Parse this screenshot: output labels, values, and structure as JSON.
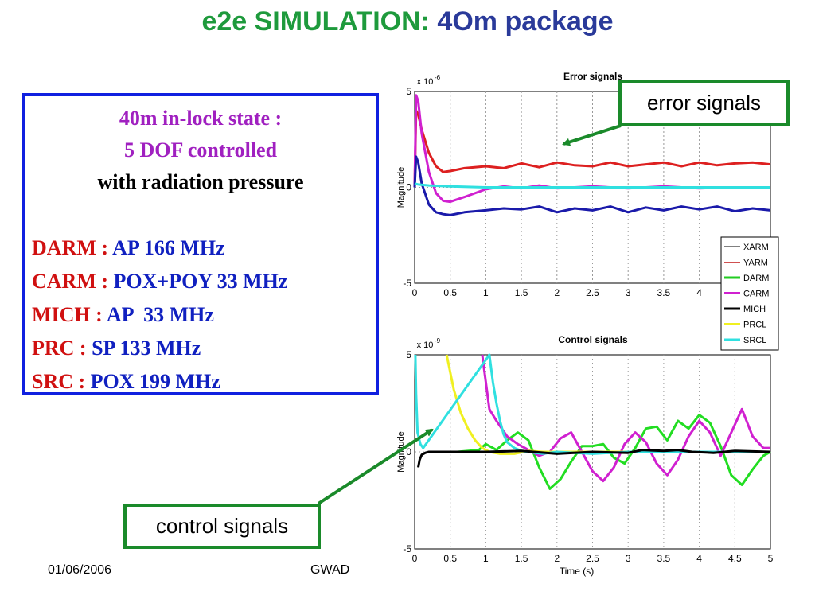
{
  "slide": {
    "title_part1": "e2e SIMULATION:",
    "title_part2": "4Om package",
    "footer_date": "01/06/2006",
    "footer_code": "GWAD"
  },
  "infobox": {
    "line1": "40m in-lock state :",
    "line2": "5 DOF controlled",
    "line3": "with radiation pressure",
    "rows": [
      {
        "key": "DARM :",
        "value": "AP 166 MHz"
      },
      {
        "key": "CARM :",
        "value": "POX+POY 33 MHz"
      },
      {
        "key": "MICH :",
        "value": "AP  33 MHz"
      },
      {
        "key": "PRC :",
        "value": "SP 133 MHz"
      },
      {
        "key": "SRC :",
        "value": "POX 199 MHz"
      }
    ]
  },
  "callouts": {
    "error": "error signals",
    "control": "control signals"
  },
  "chart_data": [
    {
      "type": "line",
      "title": "Error signals",
      "xlabel": "",
      "ylabel": "Magnitude",
      "scale_label": "x 10",
      "scale_exp": "-6",
      "xlim": [
        0,
        5
      ],
      "ylim": [
        -5,
        5
      ],
      "xticks": [
        "0",
        "0.5",
        "1",
        "1.5",
        "2",
        "2.5",
        "3",
        "3.5",
        "4"
      ],
      "yticks": [
        "5",
        "0",
        "-5"
      ],
      "grid": true,
      "legend": {
        "placement": "bottom-right",
        "entries": [
          {
            "name": "XARM",
            "color": "#000000",
            "width": 1
          },
          {
            "name": "YARM",
            "color": "#d05050",
            "width": 1
          },
          {
            "name": "DARM",
            "color": "#22cc22",
            "width": 3
          },
          {
            "name": "CARM",
            "color": "#d020d0",
            "width": 3
          },
          {
            "name": "MICH",
            "color": "#000000",
            "width": 3
          },
          {
            "name": "PRCL",
            "color": "#f0f020",
            "width": 3
          },
          {
            "name": "SRCL",
            "color": "#30e0e0",
            "width": 3
          }
        ]
      },
      "series": [
        {
          "color": "#dd2020",
          "x": [
            0,
            0.02,
            0.05,
            0.1,
            0.2,
            0.3,
            0.4,
            0.5,
            0.7,
            1.0,
            1.25,
            1.5,
            1.75,
            2.0,
            2.25,
            2.5,
            2.75,
            3.0,
            3.25,
            3.5,
            3.75,
            4.0,
            4.25,
            4.5,
            4.75,
            5.0
          ],
          "y": [
            0.0,
            4.0,
            3.8,
            3.0,
            1.8,
            1.1,
            0.8,
            0.85,
            1.0,
            1.1,
            1.0,
            1.25,
            1.05,
            1.3,
            1.15,
            1.1,
            1.3,
            1.1,
            1.2,
            1.3,
            1.1,
            1.3,
            1.15,
            1.25,
            1.3,
            1.2
          ]
        },
        {
          "color": "#d020d0",
          "x": [
            0,
            0.02,
            0.05,
            0.1,
            0.2,
            0.3,
            0.4,
            0.5,
            0.7,
            1.0,
            1.25,
            1.5,
            1.75,
            2.0,
            2.5,
            3.0,
            3.5,
            4.0,
            4.5,
            5.0
          ],
          "y": [
            0.0,
            4.8,
            4.5,
            2.8,
            0.8,
            -0.3,
            -0.7,
            -0.75,
            -0.5,
            -0.1,
            0.05,
            -0.05,
            0.1,
            -0.05,
            0.05,
            -0.05,
            0.05,
            -0.05,
            0.0,
            0.0
          ]
        },
        {
          "color": "#1a1aaa",
          "x": [
            0,
            0.02,
            0.05,
            0.1,
            0.2,
            0.3,
            0.4,
            0.5,
            0.7,
            1.0,
            1.25,
            1.5,
            1.75,
            2.0,
            2.25,
            2.5,
            2.75,
            3.0,
            3.25,
            3.5,
            3.75,
            4.0,
            4.25,
            4.5,
            4.75,
            5.0
          ],
          "y": [
            0.0,
            1.6,
            1.3,
            0.2,
            -0.9,
            -1.3,
            -1.4,
            -1.45,
            -1.3,
            -1.2,
            -1.1,
            -1.15,
            -1.0,
            -1.3,
            -1.1,
            -1.2,
            -1.0,
            -1.3,
            -1.05,
            -1.2,
            -1.0,
            -1.15,
            -1.0,
            -1.25,
            -1.1,
            -1.2
          ]
        },
        {
          "color": "#30e0e0",
          "x": [
            0,
            0.05,
            0.2,
            0.5,
            1.0,
            1.5,
            2.0,
            3.0,
            4.0,
            5.0
          ],
          "y": [
            0.2,
            0.15,
            0.1,
            0.05,
            0.0,
            0.0,
            0.0,
            0.0,
            0.0,
            0.0
          ]
        }
      ]
    },
    {
      "type": "line",
      "title": "Control signals",
      "xlabel": "Time (s)",
      "ylabel": "Magnitude",
      "scale_label": "x 10",
      "scale_exp": "-9",
      "xlim": [
        0,
        5
      ],
      "ylim": [
        -5,
        5
      ],
      "xticks": [
        "0",
        "0.5",
        "1",
        "1.5",
        "2",
        "2.5",
        "3",
        "3.5",
        "4",
        "4.5",
        "5"
      ],
      "yticks": [
        "5",
        "0",
        "-5"
      ],
      "grid": true,
      "series": [
        {
          "color": "#22dd22",
          "x": [
            0.3,
            0.6,
            0.9,
            1.0,
            1.15,
            1.3,
            1.45,
            1.6,
            1.75,
            1.9,
            2.05,
            2.2,
            2.35,
            2.5,
            2.65,
            2.8,
            2.95,
            3.1,
            3.25,
            3.4,
            3.55,
            3.7,
            3.85,
            4.0,
            4.15,
            4.3,
            4.45,
            4.6,
            4.75,
            4.9,
            5.0
          ],
          "y": [
            0.0,
            0.0,
            0.1,
            0.4,
            0.1,
            0.6,
            1.0,
            0.6,
            -0.8,
            -1.9,
            -1.4,
            -0.5,
            0.3,
            0.3,
            0.4,
            -0.3,
            -0.6,
            0.2,
            1.2,
            1.3,
            0.6,
            1.6,
            1.2,
            1.9,
            1.5,
            0.3,
            -1.2,
            -1.7,
            -0.9,
            -0.2,
            0.0
          ]
        },
        {
          "color": "#d020d0",
          "x": [
            0.95,
            1.05,
            1.15,
            1.3,
            1.45,
            1.6,
            1.75,
            1.9,
            2.05,
            2.2,
            2.35,
            2.5,
            2.65,
            2.8,
            2.95,
            3.1,
            3.25,
            3.4,
            3.55,
            3.7,
            3.85,
            4.0,
            4.15,
            4.3,
            4.45,
            4.6,
            4.75,
            4.9,
            5.0
          ],
          "y": [
            5.0,
            2.2,
            1.6,
            0.8,
            0.4,
            0.1,
            -0.2,
            0.0,
            0.7,
            1.0,
            0.0,
            -1.0,
            -1.5,
            -0.8,
            0.4,
            1.0,
            0.5,
            -0.6,
            -1.2,
            -0.4,
            0.8,
            1.6,
            1.0,
            -0.2,
            1.0,
            2.2,
            0.8,
            0.2,
            0.2
          ]
        },
        {
          "color": "#f0f020",
          "x": [
            0.45,
            0.55,
            0.65,
            0.75,
            0.85,
            0.95,
            1.05,
            1.2,
            1.4,
            1.6,
            1.8,
            2.0,
            3.0,
            4.0,
            5.0
          ],
          "y": [
            5.0,
            3.2,
            2.0,
            1.2,
            0.6,
            0.2,
            0.0,
            -0.1,
            -0.1,
            0.05,
            0.0,
            0.0,
            0.0,
            0.0,
            0.0
          ]
        },
        {
          "color": "#30e0e0",
          "x": [
            0.01,
            0.02,
            0.04,
            0.08,
            0.12,
            1.05,
            1.1,
            1.15,
            1.2,
            1.25,
            1.3,
            1.4,
            1.5,
            1.6,
            1.8,
            2.0,
            2.5,
            3.0,
            4.0,
            5.0
          ],
          "y": [
            5.0,
            3.0,
            1.0,
            0.4,
            0.2,
            5.0,
            3.6,
            2.5,
            1.6,
            0.9,
            0.5,
            0.2,
            0.05,
            0.0,
            -0.1,
            0.0,
            -0.1,
            0.0,
            0.0,
            0.0
          ]
        },
        {
          "color": "#000000",
          "x": [
            0.05,
            0.07,
            0.1,
            0.15,
            0.2,
            0.3,
            0.5,
            1.0,
            1.5,
            2.0,
            2.5,
            3.0,
            3.2,
            3.5,
            3.7,
            3.9,
            4.2,
            4.5,
            5.0
          ],
          "y": [
            -0.8,
            -0.4,
            -0.15,
            -0.05,
            0.0,
            0.0,
            0.0,
            0.0,
            0.05,
            -0.1,
            0.0,
            -0.05,
            0.1,
            0.05,
            0.1,
            0.0,
            -0.05,
            0.05,
            0.0
          ]
        }
      ]
    }
  ]
}
